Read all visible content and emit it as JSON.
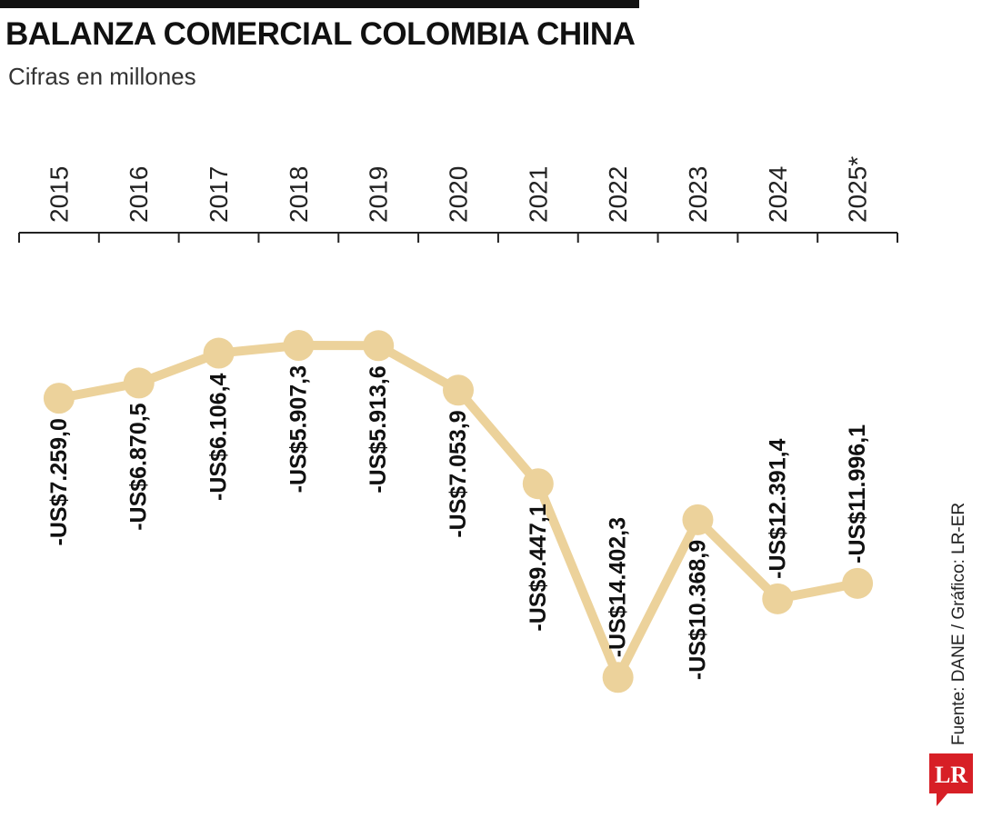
{
  "header": {
    "title": "BALANZA COMERCIAL COLOMBIA CHINA",
    "subtitle": "Cifras en millones"
  },
  "source_note": "Fuente: DANE / Gráfico: LR-ER",
  "logo": {
    "text": "LR",
    "color": "#d71f26"
  },
  "colors": {
    "line": "#ecd29b",
    "text": "#111111",
    "axis": "#222222"
  },
  "chart_data": {
    "type": "line",
    "title": "BALANZA COMERCIAL COLOMBIA CHINA",
    "subtitle": "Cifras en millones",
    "x_axis_position": "top",
    "grid": false,
    "legend": "none",
    "x": [
      "2015",
      "2016",
      "2017",
      "2018",
      "2019",
      "2020",
      "2021",
      "2022",
      "2023",
      "2024",
      "2025*"
    ],
    "series": [
      {
        "values": [
          -7259.0,
          -6870.5,
          -6106.4,
          -5907.3,
          -5913.6,
          -7053.9,
          -9447.1,
          -14402.3,
          -10368.9,
          -12391.4,
          -11996.1
        ],
        "labels": [
          "-US$7.259,0",
          "-US$6.870,5",
          "-US$6.106,4",
          "-US$5.907,3",
          "-US$5.913,6",
          "-US$7.053,9",
          "-US$9.447,1",
          "-US$14.402,3",
          "-US$10.368,9",
          "-US$12.391,4",
          "-US$11.996,1"
        ],
        "label_side": [
          "below",
          "below",
          "below",
          "below",
          "below",
          "below",
          "below",
          "above",
          "below",
          "above",
          "above"
        ]
      }
    ]
  }
}
